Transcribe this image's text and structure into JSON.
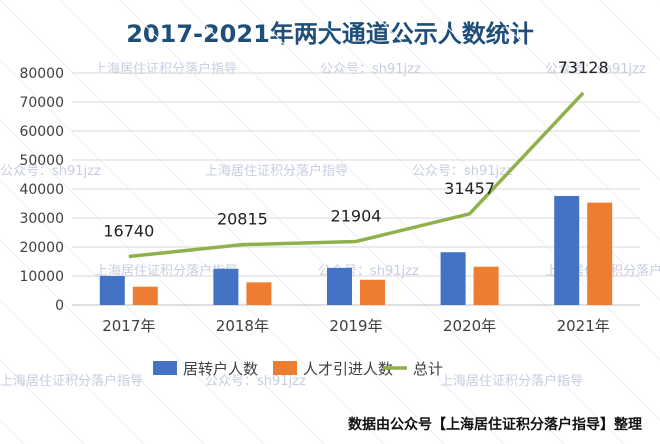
{
  "title": "2017-2021年两大通道公示人数统计",
  "footer": "数据由公众号【上海居住证积分落户指导】整理",
  "watermarks": {
    "account_name": "上海居住证积分落户指导",
    "account_id": "公众号：sh91jzz",
    "id_short": "sh91jzz"
  },
  "chart_data": {
    "type": "bar",
    "categories": [
      "2017年",
      "2018年",
      "2019年",
      "2020年",
      "2021年"
    ],
    "series": [
      {
        "name": "居转户人数",
        "type": "bar",
        "color": "#4472C4",
        "values": [
          10000,
          12500,
          12800,
          18200,
          37600
        ]
      },
      {
        "name": "人才引进人数",
        "type": "bar",
        "color": "#ED7D31",
        "values": [
          6300,
          7800,
          8700,
          13200,
          35300
        ]
      },
      {
        "name": "总计",
        "type": "line",
        "color": "#8FB14B",
        "values": [
          16740,
          20815,
          21904,
          31457,
          73128
        ],
        "data_labels": [
          "16740",
          "20815",
          "21904",
          "31457",
          "73128"
        ]
      }
    ],
    "ylim": [
      0,
      80000
    ],
    "yticks": [
      0,
      10000,
      20000,
      30000,
      40000,
      50000,
      60000,
      70000,
      80000
    ],
    "grid": true,
    "legend_position": "bottom",
    "xlabel": "",
    "ylabel": ""
  }
}
